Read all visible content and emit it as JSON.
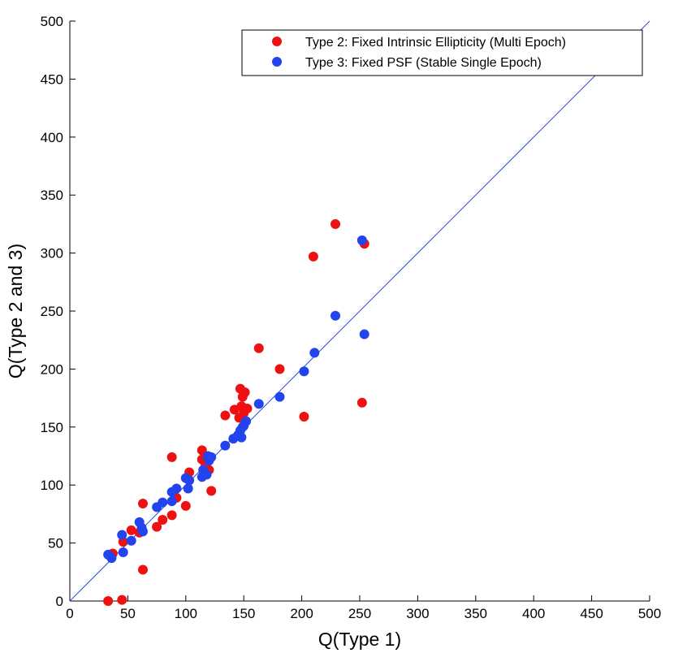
{
  "chart_data": {
    "type": "scatter",
    "title": "",
    "xlabel": "Q(Type 1)",
    "ylabel": "Q(Type 2 and 3)",
    "xlim": [
      0,
      500
    ],
    "ylim": [
      0,
      500
    ],
    "xticks": [
      0,
      50,
      100,
      150,
      200,
      250,
      300,
      350,
      400,
      450,
      500
    ],
    "yticks": [
      0,
      50,
      100,
      150,
      200,
      250,
      300,
      350,
      400,
      450,
      500
    ],
    "grid": false,
    "legend_position": "top-right",
    "reference_line": {
      "type": "identity",
      "from": [
        0,
        0
      ],
      "to": [
        500,
        500
      ],
      "color": "#2b4fd8"
    },
    "series": [
      {
        "name": "Type 2: Fixed Intrinsic Ellipticity (Multi Epoch)",
        "color": "#ee1111",
        "points": [
          [
            33,
            0
          ],
          [
            45,
            1
          ],
          [
            63,
            27
          ],
          [
            37,
            41
          ],
          [
            46,
            51
          ],
          [
            53,
            61
          ],
          [
            60,
            59
          ],
          [
            63,
            84
          ],
          [
            75,
            64
          ],
          [
            80,
            70
          ],
          [
            88,
            74
          ],
          [
            92,
            89
          ],
          [
            88,
            124
          ],
          [
            100,
            82
          ],
          [
            103,
            111
          ],
          [
            114,
            122
          ],
          [
            114,
            130
          ],
          [
            117,
            117
          ],
          [
            120,
            113
          ],
          [
            122,
            95
          ],
          [
            134,
            160
          ],
          [
            142,
            165
          ],
          [
            146,
            158
          ],
          [
            147,
            183
          ],
          [
            148,
            168
          ],
          [
            149,
            176
          ],
          [
            150,
            162
          ],
          [
            151,
            180
          ],
          [
            153,
            166
          ],
          [
            163,
            218
          ],
          [
            181,
            200
          ],
          [
            202,
            159
          ],
          [
            210,
            297
          ],
          [
            229,
            325
          ],
          [
            252,
            171
          ],
          [
            254,
            308
          ]
        ]
      },
      {
        "name": "Type 3: Fixed PSF (Stable Single Epoch)",
        "color": "#2244ee",
        "points": [
          [
            33,
            40
          ],
          [
            36,
            37
          ],
          [
            45,
            57
          ],
          [
            46,
            42
          ],
          [
            53,
            52
          ],
          [
            60,
            68
          ],
          [
            62,
            63
          ],
          [
            63,
            60
          ],
          [
            75,
            81
          ],
          [
            80,
            85
          ],
          [
            88,
            86
          ],
          [
            88,
            94
          ],
          [
            92,
            97
          ],
          [
            100,
            106
          ],
          [
            102,
            97
          ],
          [
            103,
            104
          ],
          [
            114,
            107
          ],
          [
            115,
            113
          ],
          [
            118,
            109
          ],
          [
            119,
            125
          ],
          [
            120,
            121
          ],
          [
            122,
            124
          ],
          [
            134,
            134
          ],
          [
            141,
            140
          ],
          [
            145,
            143
          ],
          [
            147,
            147
          ],
          [
            148,
            141
          ],
          [
            149,
            150
          ],
          [
            150,
            151
          ],
          [
            152,
            155
          ],
          [
            163,
            170
          ],
          [
            181,
            176
          ],
          [
            202,
            198
          ],
          [
            211,
            214
          ],
          [
            229,
            246
          ],
          [
            252,
            311
          ],
          [
            254,
            230
          ]
        ]
      }
    ]
  }
}
